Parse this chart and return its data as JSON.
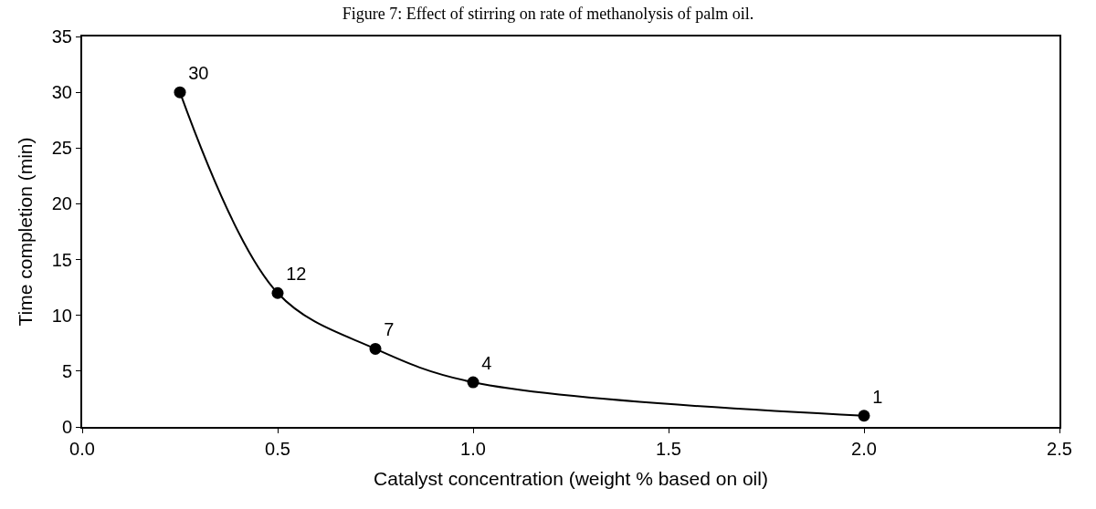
{
  "chart_data": {
    "type": "line",
    "title": "Figure 7: Effect of stirring on rate of methanolysis of palm oil.",
    "xlabel": "Catalyst concentration (weight % based on oil)",
    "ylabel": "Time completion (min)",
    "x": [
      0.25,
      0.5,
      0.75,
      1.0,
      2.0
    ],
    "series": [
      {
        "color": "#000000",
        "values": [
          30,
          12,
          7,
          4,
          1
        ]
      }
    ],
    "xlim": [
      0,
      2.5
    ],
    "xticks": [
      {
        "value": 0,
        "label": "0.0"
      },
      {
        "value": 0.5,
        "label": "0.5"
      },
      {
        "value": 1,
        "label": "1.0"
      },
      {
        "value": 1.5,
        "label": "1.5"
      },
      {
        "value": 2,
        "label": "2.0"
      },
      {
        "value": 2.5,
        "label": "2.5"
      }
    ],
    "ylim": [
      0,
      35
    ],
    "yticks": [
      0,
      5,
      10,
      15,
      20,
      25,
      30,
      35
    ],
    "data_labels": true,
    "marker": "circle",
    "line_style": "solid",
    "legend": false
  }
}
